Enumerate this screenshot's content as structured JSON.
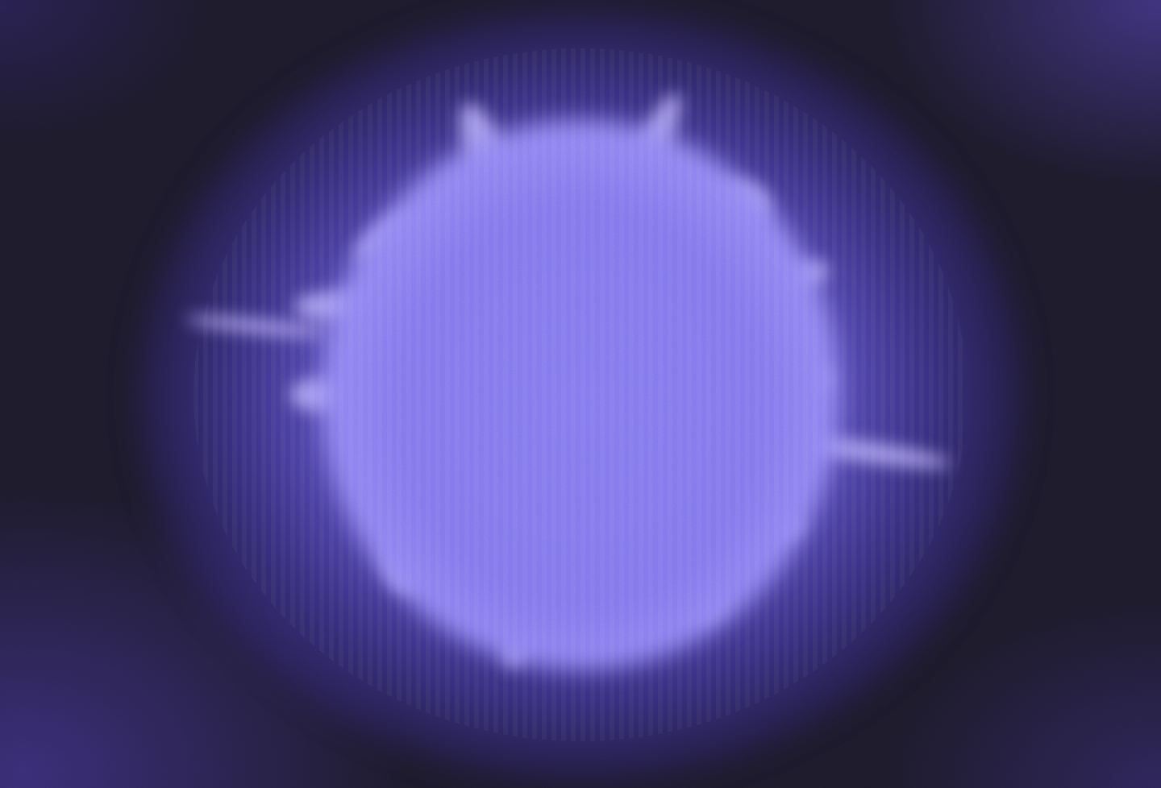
{
  "image": {
    "subject": "glowing-orb",
    "colors": {
      "background": "#1d1a2b",
      "core": "#8276ec",
      "highlight": "#b3a9fb",
      "edge": "#3d2d9a"
    }
  }
}
